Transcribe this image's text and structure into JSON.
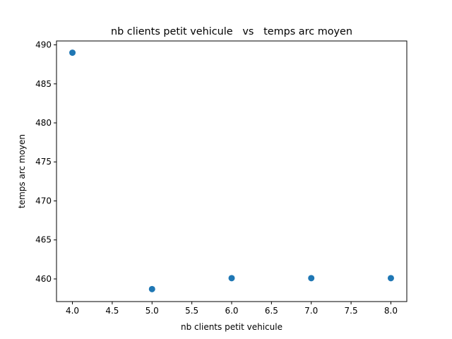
{
  "chart_data": {
    "type": "scatter",
    "title": "nb clients petit vehicule   vs   temps arc moyen",
    "xlabel": "nb clients petit vehicule",
    "ylabel": "temps arc moyen",
    "xlim": [
      3.8,
      8.2
    ],
    "ylim": [
      457.1,
      490.5
    ],
    "xticks": [
      4.0,
      4.5,
      5.0,
      5.5,
      6.0,
      6.5,
      7.0,
      7.5,
      8.0
    ],
    "xtick_labels": [
      "4.0",
      "4.5",
      "5.0",
      "5.5",
      "6.0",
      "6.5",
      "7.0",
      "7.5",
      "8.0"
    ],
    "yticks": [
      460,
      465,
      470,
      475,
      480,
      485,
      490
    ],
    "ytick_labels": [
      "460",
      "465",
      "470",
      "475",
      "480",
      "485",
      "490"
    ],
    "grid": false,
    "marker_color": "#1f77b4",
    "points": [
      {
        "x": 4,
        "y": 489.0
      },
      {
        "x": 5,
        "y": 458.7
      },
      {
        "x": 6,
        "y": 460.1
      },
      {
        "x": 7,
        "y": 460.1
      },
      {
        "x": 8,
        "y": 460.1
      }
    ]
  }
}
